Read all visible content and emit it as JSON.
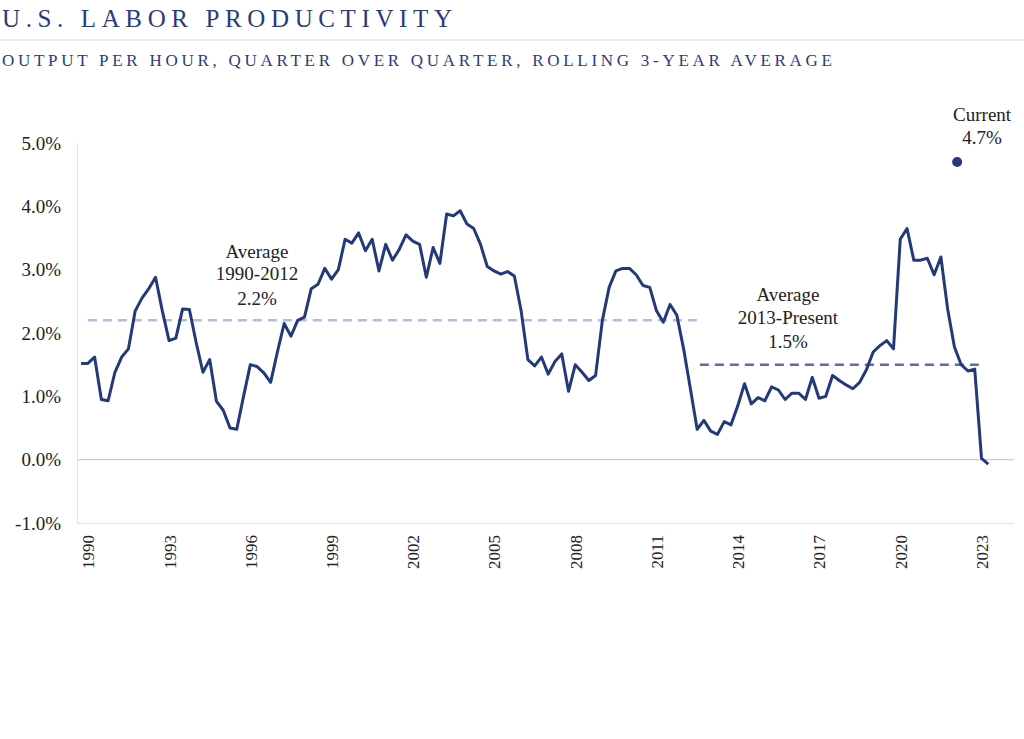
{
  "chart_data": {
    "type": "line",
    "title": "U.S. LABOR PRODUCTIVITY",
    "subtitle": "OUTPUT PER HOUR, QUARTER OVER QUARTER, ROLLING 3-YEAR AVERAGE",
    "xlim": [
      1989.6,
      2024.2
    ],
    "xticks": [
      1990,
      1993,
      1996,
      1999,
      2002,
      2005,
      2008,
      2011,
      2014,
      2017,
      2020,
      2023
    ],
    "ylim": [
      -1,
      5
    ],
    "yticks": [
      {
        "value": -1,
        "label": "-1.0%"
      },
      {
        "value": 0,
        "label": "0.0%"
      },
      {
        "value": 1,
        "label": "1.0%"
      },
      {
        "value": 2,
        "label": "2.0%"
      },
      {
        "value": 3,
        "label": "3.0%"
      },
      {
        "value": 4,
        "label": "4.0%"
      },
      {
        "value": 5,
        "label": "5.0%"
      }
    ],
    "grid": false,
    "annotations": [
      {
        "lines": [
          "Average",
          "1990-2012",
          "2.2%"
        ]
      },
      {
        "lines": [
          "Average",
          "2013-Present",
          "1.5%"
        ]
      }
    ],
    "series": [
      {
        "type": "line",
        "line_style": "dashed",
        "color": "#aac0e0",
        "x": [
          1990,
          2012.6
        ],
        "values": [
          2.2,
          2.2
        ]
      },
      {
        "type": "line",
        "line_style": "dashed",
        "color": "#5b6f9f",
        "x": [
          2012.6,
          2023.1
        ],
        "values": [
          1.5,
          1.5
        ]
      },
      {
        "type": "line",
        "line_style": "solid",
        "color": "#24397a",
        "x": [
          1989.75,
          1990,
          1990.25,
          1990.5,
          1990.75,
          1991,
          1991.25,
          1991.5,
          1991.75,
          1992,
          1992.25,
          1992.5,
          1992.75,
          1993,
          1993.25,
          1993.5,
          1993.75,
          1994,
          1994.25,
          1994.5,
          1994.75,
          1995,
          1995.25,
          1995.5,
          1995.75,
          1996,
          1996.25,
          1996.5,
          1996.75,
          1997,
          1997.25,
          1997.5,
          1997.75,
          1998,
          1998.25,
          1998.5,
          1998.75,
          1999,
          1999.25,
          1999.5,
          1999.75,
          2000,
          2000.25,
          2000.5,
          2000.75,
          2001,
          2001.25,
          2001.5,
          2001.75,
          2002,
          2002.25,
          2002.5,
          2002.75,
          2003,
          2003.25,
          2003.5,
          2003.75,
          2004,
          2004.25,
          2004.5,
          2004.75,
          2005,
          2005.25,
          2005.5,
          2005.75,
          2006,
          2006.25,
          2006.5,
          2006.75,
          2007,
          2007.25,
          2007.5,
          2007.75,
          2008,
          2008.25,
          2008.5,
          2008.75,
          2009,
          2009.25,
          2009.5,
          2009.75,
          2010,
          2010.25,
          2010.5,
          2010.75,
          2011,
          2011.25,
          2011.5,
          2011.75,
          2012,
          2012.25,
          2012.5,
          2012.75,
          2013,
          2013.25,
          2013.5,
          2013.75,
          2014,
          2014.25,
          2014.5,
          2014.75,
          2015,
          2015.25,
          2015.5,
          2015.75,
          2016,
          2016.25,
          2016.5,
          2016.75,
          2017,
          2017.25,
          2017.5,
          2017.75,
          2018,
          2018.25,
          2018.5,
          2018.75,
          2019,
          2019.25,
          2019.5,
          2019.75,
          2020,
          2020.25,
          2020.5,
          2020.75,
          2021,
          2021.25,
          2021.5,
          2021.75,
          2022,
          2022.25,
          2022.5,
          2022.75,
          2023,
          2023.25
        ],
        "values": [
          1.52,
          1.52,
          1.62,
          0.95,
          0.93,
          1.38,
          1.62,
          1.75,
          2.35,
          2.55,
          2.7,
          2.88,
          2.35,
          1.88,
          1.92,
          2.38,
          2.37,
          1.85,
          1.38,
          1.58,
          0.92,
          0.78,
          0.5,
          0.48,
          1.0,
          1.5,
          1.47,
          1.37,
          1.22,
          1.7,
          2.15,
          1.95,
          2.2,
          2.25,
          2.7,
          2.77,
          3.02,
          2.85,
          3.0,
          3.48,
          3.42,
          3.58,
          3.3,
          3.48,
          2.98,
          3.4,
          3.15,
          3.32,
          3.55,
          3.45,
          3.4,
          2.88,
          3.35,
          3.1,
          3.88,
          3.85,
          3.93,
          3.72,
          3.65,
          3.4,
          3.05,
          2.98,
          2.93,
          2.97,
          2.9,
          2.35,
          1.58,
          1.48,
          1.62,
          1.35,
          1.55,
          1.67,
          1.08,
          1.5,
          1.38,
          1.25,
          1.33,
          2.2,
          2.72,
          2.98,
          3.02,
          3.02,
          2.92,
          2.75,
          2.72,
          2.35,
          2.17,
          2.45,
          2.28,
          1.75,
          1.12,
          0.48,
          0.62,
          0.45,
          0.4,
          0.6,
          0.55,
          0.85,
          1.2,
          0.88,
          0.98,
          0.93,
          1.15,
          1.1,
          0.95,
          1.05,
          1.05,
          0.95,
          1.3,
          0.97,
          1.0,
          1.33,
          1.25,
          1.18,
          1.12,
          1.22,
          1.42,
          1.7,
          1.8,
          1.88,
          1.75,
          3.48,
          3.65,
          3.15,
          3.15,
          3.18,
          2.92,
          3.2,
          2.38,
          1.78,
          1.5,
          1.4,
          1.43,
          0.02,
          -0.07
        ]
      },
      {
        "type": "scatter",
        "marker": "circle",
        "color": "#24397a",
        "name": "Current",
        "data_labels": true,
        "x": [
          2022.1
        ],
        "values": [
          4.7
        ],
        "value_labels": [
          "4.7%"
        ]
      }
    ]
  }
}
